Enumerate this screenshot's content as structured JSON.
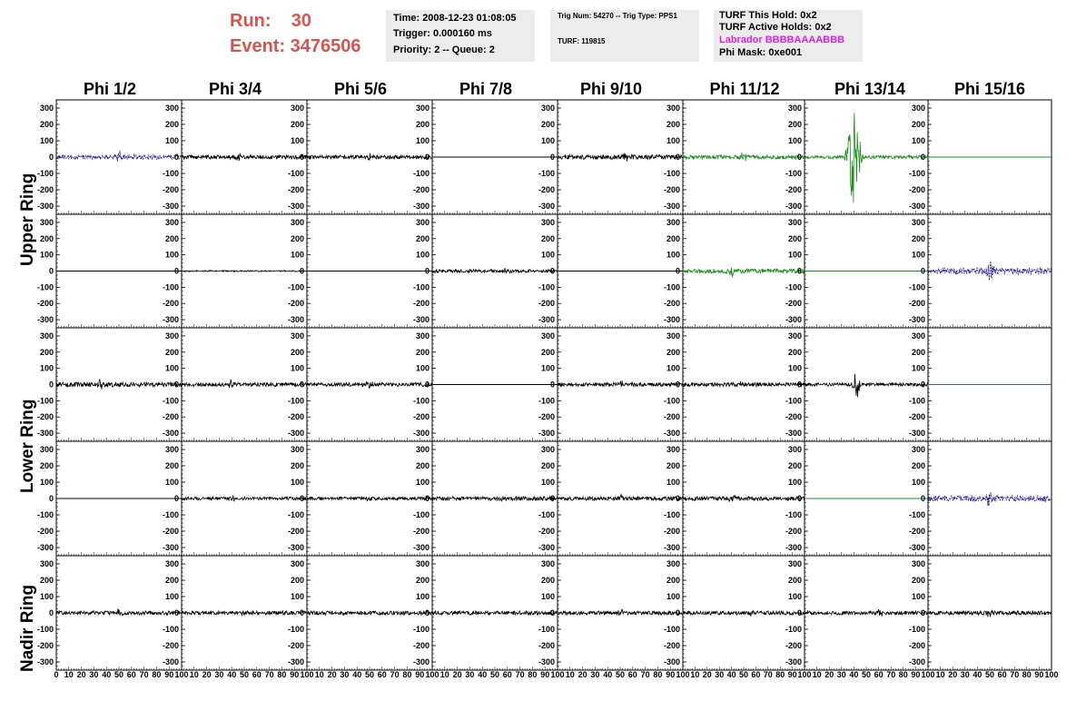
{
  "header": {
    "run_label": "Run:    30",
    "event_label": "Event: 3476506",
    "info_box_1": {
      "time": "Time: 2008-12-23 01:08:05",
      "trigger": "Trigger: 0.000160 ms",
      "priority": "Priority: 2 -- Queue: 2"
    },
    "info_box_2": {
      "trig": "Trig Num: 54270 -- Trig Type: PPS1",
      "turf": "TURF: 119815"
    },
    "info_box_3": {
      "hold": "TURF This Hold: 0x2",
      "active": "TURF Active Holds: 0x2",
      "labrador": "Labrador BBBBAAAABBB",
      "phimask": "Phi Mask: 0xe001"
    }
  },
  "columns": [
    "Phi 1/2",
    "Phi 3/4",
    "Phi 5/6",
    "Phi 7/8",
    "Phi 9/10",
    "Phi 11/12",
    "Phi 13/14",
    "Phi 15/16"
  ],
  "rows": [
    "Upper Ring",
    "Lower Ring",
    "Nadir Ring"
  ],
  "colors": {
    "black": "#000000",
    "green": "#1e8c1e",
    "blue": "#1a1a8c",
    "run_red": "#d9534f",
    "magenta": "#e020e0"
  },
  "chart_data": {
    "type": "line",
    "ylim": [
      -350,
      350
    ],
    "xlim": [
      0,
      100
    ],
    "y_ticks": [
      "300",
      "200",
      "100",
      "0",
      "-100",
      "-200",
      "-300"
    ],
    "x_ticks": [
      "0",
      "10",
      "20",
      "30",
      "40",
      "50",
      "60",
      "70",
      "80",
      "90",
      "100"
    ],
    "panels": [
      [
        {
          "color": "blue",
          "style": "dashed",
          "amp": 14,
          "burst": 50,
          "bamp": 45
        },
        {
          "color": "black",
          "style": "solid",
          "amp": 12,
          "burst": 45,
          "bamp": 22
        },
        {
          "color": "black",
          "style": "solid",
          "amp": 12,
          "burst": 50,
          "bamp": 20
        },
        {
          "color": "black",
          "style": "flat",
          "amp": 0,
          "burst": 0,
          "bamp": 0
        },
        {
          "color": "black",
          "style": "solid",
          "amp": 14,
          "burst": 55,
          "bamp": 25
        },
        {
          "color": "green",
          "style": "solid",
          "amp": 12,
          "burst": 50,
          "bamp": 30
        },
        {
          "color": "green",
          "style": "solid",
          "amp": 10,
          "burst": 40,
          "bamp": 300
        },
        {
          "color": "green",
          "style": "flat",
          "amp": 0,
          "burst": 0,
          "bamp": 0
        }
      ],
      [
        {
          "color": "black",
          "style": "flat",
          "amp": 0,
          "burst": 0,
          "bamp": 0
        },
        {
          "color": "black",
          "style": "solid",
          "amp": 4,
          "burst": 0,
          "bamp": 0
        },
        {
          "color": "black",
          "style": "flat",
          "amp": 0,
          "burst": 0,
          "bamp": 0
        },
        {
          "color": "black",
          "style": "solid",
          "amp": 10,
          "burst": 60,
          "bamp": 18
        },
        {
          "color": "black",
          "style": "flat",
          "amp": 0,
          "burst": 0,
          "bamp": 0
        },
        {
          "color": "green",
          "style": "solid",
          "amp": 14,
          "burst": 40,
          "bamp": 35
        },
        {
          "color": "green",
          "style": "flat",
          "amp": 0,
          "burst": 0,
          "bamp": 0
        },
        {
          "color": "blue",
          "style": "dashed",
          "amp": 20,
          "burst": 50,
          "bamp": 70
        }
      ],
      [
        {
          "color": "black",
          "style": "solid",
          "amp": 14,
          "burst": 35,
          "bamp": 22
        },
        {
          "color": "black",
          "style": "solid",
          "amp": 12,
          "burst": 40,
          "bamp": 20
        },
        {
          "color": "black",
          "style": "solid",
          "amp": 12,
          "burst": 50,
          "bamp": 25
        },
        {
          "color": "black",
          "style": "flat",
          "amp": 0,
          "burst": 0,
          "bamp": 0
        },
        {
          "color": "black",
          "style": "solid",
          "amp": 12,
          "burst": 50,
          "bamp": 20
        },
        {
          "color": "black",
          "style": "solid",
          "amp": 12,
          "burst": 45,
          "bamp": 20
        },
        {
          "color": "black",
          "style": "solid",
          "amp": 10,
          "burst": 42,
          "bamp": 100
        },
        {
          "color": "green",
          "style": "flat",
          "amp": 0,
          "burst": 0,
          "bamp": 0
        }
      ],
      [
        {
          "color": "black",
          "style": "flat",
          "amp": 0,
          "burst": 0,
          "bamp": 0
        },
        {
          "color": "black",
          "style": "solid",
          "amp": 10,
          "burst": 40,
          "bamp": 15
        },
        {
          "color": "black",
          "style": "solid",
          "amp": 10,
          "burst": 50,
          "bamp": 15
        },
        {
          "color": "black",
          "style": "solid",
          "amp": 12,
          "burst": 55,
          "bamp": 18
        },
        {
          "color": "black",
          "style": "solid",
          "amp": 12,
          "burst": 50,
          "bamp": 18
        },
        {
          "color": "black",
          "style": "solid",
          "amp": 12,
          "burst": 40,
          "bamp": 35
        },
        {
          "color": "green",
          "style": "flat",
          "amp": 0,
          "burst": 0,
          "bamp": 0
        },
        {
          "color": "blue",
          "style": "dashed",
          "amp": 18,
          "burst": 50,
          "bamp": 45
        }
      ],
      [
        {
          "color": "black",
          "style": "solid",
          "amp": 12,
          "burst": 50,
          "bamp": 18
        },
        {
          "color": "black",
          "style": "solid",
          "amp": 12,
          "burst": 50,
          "bamp": 15
        },
        {
          "color": "black",
          "style": "solid",
          "amp": 12,
          "burst": 40,
          "bamp": 15
        },
        {
          "color": "black",
          "style": "solid",
          "amp": 12,
          "burst": 50,
          "bamp": 15
        },
        {
          "color": "black",
          "style": "solid",
          "amp": 12,
          "burst": 50,
          "bamp": 15
        },
        {
          "color": "black",
          "style": "solid",
          "amp": 12,
          "burst": 55,
          "bamp": 15
        },
        {
          "color": "black",
          "style": "solid",
          "amp": 12,
          "burst": 60,
          "bamp": 20
        },
        {
          "color": "black",
          "style": "solid",
          "amp": 12,
          "burst": 50,
          "bamp": 25
        }
      ]
    ]
  }
}
